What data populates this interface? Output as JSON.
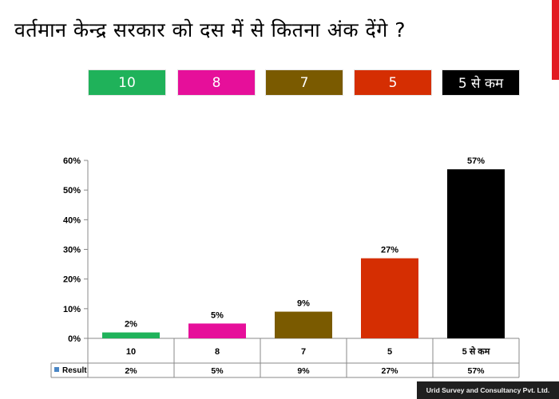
{
  "title": "वर्तमान केन्द्र सरकार को दस में से कितना अंक देंगे ?",
  "legend": [
    {
      "label": "10",
      "color": "#1fb25a"
    },
    {
      "label": "8",
      "color": "#e60f9a"
    },
    {
      "label": "7",
      "color": "#7a5a00"
    },
    {
      "label": "5",
      "color": "#d52e02"
    },
    {
      "label": "5 से कम",
      "color": "#000000"
    }
  ],
  "chart_data": {
    "type": "bar",
    "categories": [
      "10",
      "8",
      "7",
      "5",
      "5 से कम"
    ],
    "series": [
      {
        "name": "Result",
        "values": [
          2,
          5,
          9,
          27,
          57
        ],
        "colors": [
          "#1fb25a",
          "#e60f9a",
          "#7a5a00",
          "#d52e02",
          "#000000"
        ]
      }
    ],
    "data_labels": [
      "2%",
      "5%",
      "9%",
      "27%",
      "57%"
    ],
    "yticks": [
      "0%",
      "10%",
      "20%",
      "30%",
      "40%",
      "50%",
      "60%"
    ],
    "ylim": [
      0,
      60
    ],
    "grid": false,
    "data_table": {
      "series_label": "Result",
      "values": [
        "2%",
        "5%",
        "9%",
        "27%",
        "57%"
      ]
    }
  },
  "footer": "Urid Survey and Consultancy Pvt. Ltd."
}
